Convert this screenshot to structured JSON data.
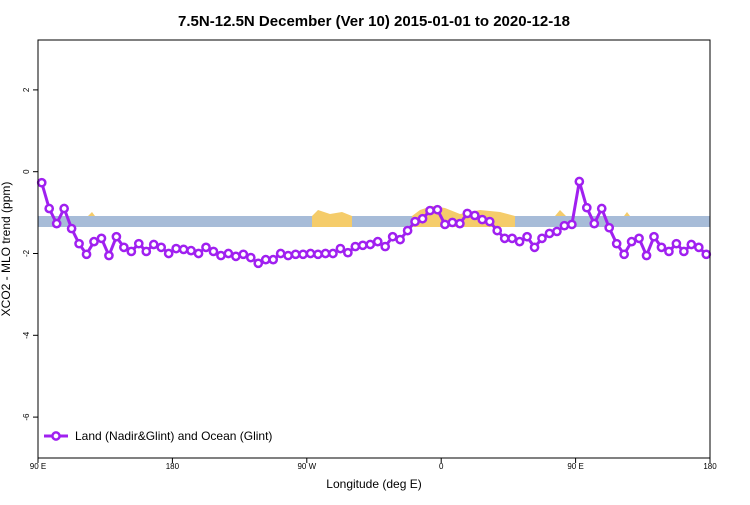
{
  "chart_data": {
    "type": "line",
    "title": "7.5N-12.5N December (Ver 10)   2015-01-01 to 2020-12-18",
    "x_label": "Longitude (deg E)",
    "y_label": "XCO2 - MLO trend (ppm)",
    "xlim": [
      90,
      540
    ],
    "xticks": [
      {
        "value": 90,
        "label": "90 E"
      },
      180,
      {
        "value": 270,
        "label": "90 W"
      },
      {
        "value": 360,
        "label": "0"
      },
      {
        "value": 450,
        "label": "90 E"
      },
      {
        "value": 540,
        "label": "180"
      }
    ],
    "ylim": [
      -7,
      3.22
    ],
    "yticks": [
      -6,
      -4,
      -2,
      0,
      2
    ],
    "legend": "bottom-left",
    "x": [
      92.5,
      97.5,
      102.5,
      107.5,
      112.5,
      117.5,
      122.5,
      127.5,
      132.5,
      137.5,
      142.5,
      147.5,
      152.5,
      157.5,
      162.5,
      167.5,
      172.5,
      177.5,
      182.5,
      187.5,
      192.5,
      197.5,
      202.5,
      207.5,
      212.5,
      217.5,
      222.5,
      227.5,
      232.5,
      237.5,
      242.5,
      247.5,
      252.5,
      257.5,
      262.5,
      267.5,
      272.5,
      277.5,
      282.5,
      287.5,
      292.5,
      297.5,
      302.5,
      307.5,
      312.5,
      317.5,
      322.5,
      327.5,
      332.5,
      337.5,
      342.5,
      347.5,
      352.5,
      357.5,
      362.5,
      367.5,
      372.5,
      377.5,
      382.5,
      387.5,
      392.5,
      397.5,
      402.5,
      407.5,
      412.5,
      417.5,
      422.5,
      427.5,
      432.5,
      437.5,
      442.5,
      447.5,
      452.5,
      457.5,
      462.5,
      467.5,
      472.5,
      477.5,
      482.5,
      487.5,
      492.5,
      497.5,
      502.5,
      507.5,
      512.5,
      517.5,
      522.5,
      527.5,
      532.5,
      537.5
    ],
    "series": [
      {
        "name": "Land (Nadir&Glint) and Ocean (Glint)",
        "color": "#a020f0",
        "values": [
          -0.27,
          -0.9,
          -1.27,
          -0.9,
          -1.39,
          -1.76,
          -2.02,
          -1.71,
          -1.63,
          -2.05,
          -1.59,
          -1.85,
          -1.95,
          -1.76,
          -1.95,
          -1.78,
          -1.85,
          -2.0,
          -1.88,
          -1.9,
          -1.93,
          -2.0,
          -1.85,
          -1.95,
          -2.05,
          -2.0,
          -2.07,
          -2.02,
          -2.1,
          -2.24,
          -2.15,
          -2.15,
          -2.0,
          -2.05,
          -2.02,
          -2.02,
          -2.0,
          -2.02,
          -2.0,
          -2.0,
          -1.88,
          -1.98,
          -1.83,
          -1.8,
          -1.78,
          -1.71,
          -1.83,
          -1.59,
          -1.66,
          -1.44,
          -1.22,
          -1.15,
          -0.95,
          -0.93,
          -1.29,
          -1.24,
          -1.27,
          -1.02,
          -1.07,
          -1.17,
          -1.22,
          -1.44,
          -1.63,
          -1.63,
          -1.71,
          -1.59,
          -1.85,
          -1.63,
          -1.51,
          -1.46,
          -1.32,
          -1.29,
          -0.24,
          -0.88,
          -1.27,
          -0.9,
          -1.37,
          -1.76,
          -2.02,
          -1.71,
          -1.63,
          -2.05,
          -1.59,
          -1.85,
          -1.95,
          -1.76,
          -1.95,
          -1.78,
          -1.85,
          -2.02
        ]
      }
    ]
  }
}
